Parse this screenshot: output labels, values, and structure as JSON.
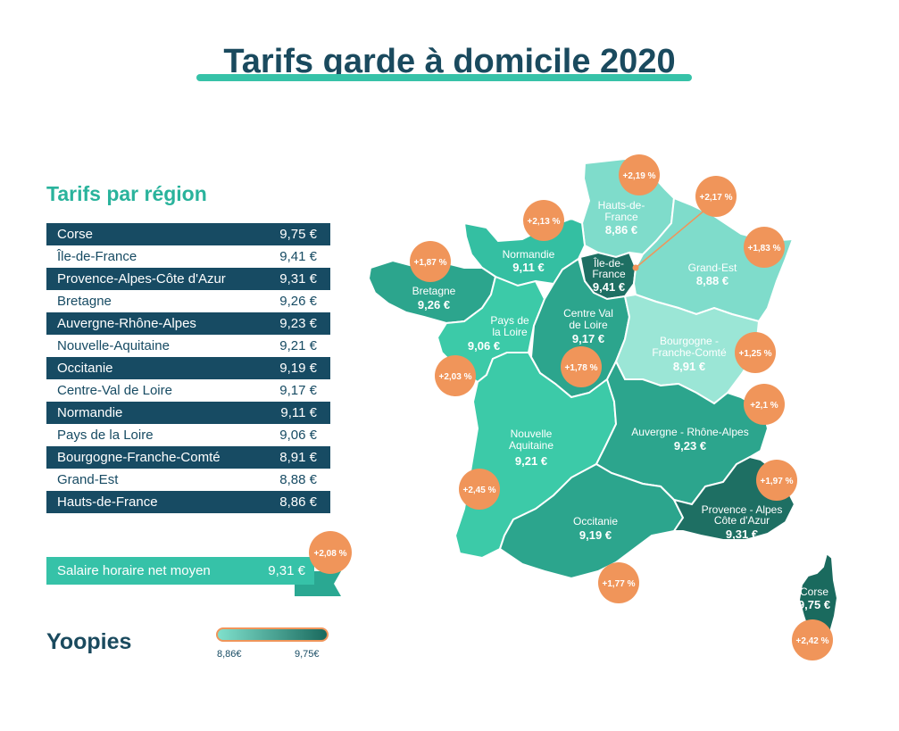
{
  "title": "Tarifs garde à domicile 2020",
  "subtitle": "Tarifs par région",
  "colors": {
    "dark_row": "#174b63",
    "accent_teal": "#36c2a8",
    "badge_orange": "#f0955a",
    "scale_min": "#7fe0cc",
    "scale_max": "#1a6a5e"
  },
  "table": [
    {
      "region": "Corse",
      "price": "9,75 €"
    },
    {
      "region": "Île-de-France",
      "price": "9,41 €"
    },
    {
      "region": "Provence-Alpes-Côte d'Azur",
      "price": "9,31 €"
    },
    {
      "region": "Bretagne",
      "price": "9,26 €"
    },
    {
      "region": "Auvergne-Rhône-Alpes",
      "price": "9,23 €"
    },
    {
      "region": "Nouvelle-Aquitaine",
      "price": "9,21 €"
    },
    {
      "region": "Occitanie",
      "price": "9,19 €"
    },
    {
      "region": "Centre-Val de Loire",
      "price": "9,17 €"
    },
    {
      "region": "Normandie",
      "price": "9,11 €"
    },
    {
      "region": "Pays de la Loire",
      "price": "9,06 €"
    },
    {
      "region": "Bourgogne-Franche-Comté",
      "price": "8,91 €"
    },
    {
      "region": "Grand-Est",
      "price": "8,88 €"
    },
    {
      "region": "Hauts-de-France",
      "price": "8,86 €"
    }
  ],
  "average": {
    "label": "Salaire horaire net moyen",
    "value": "9,31 €",
    "change": "+2,08 %"
  },
  "logo": "Yoopies",
  "legend": {
    "min": "8,86€",
    "max": "9,75€"
  },
  "map": {
    "hauts_de_france": {
      "name": [
        "Hauts-de-",
        "France"
      ],
      "value": "8,86 €",
      "change": "+2,19 %"
    },
    "normandie": {
      "name": [
        "Normandie"
      ],
      "value": "9,11 €",
      "change": "+2,13 %"
    },
    "ile_de_france": {
      "name": [
        "Île-de-",
        "France"
      ],
      "value": "9,41 €",
      "change": "+2,17 %"
    },
    "grand_est": {
      "name": [
        "Grand-Est"
      ],
      "value": "8,88 €",
      "change": "+1,83 %"
    },
    "bretagne": {
      "name": [
        "Bretagne"
      ],
      "value": "9,26 €",
      "change": "+1,87 %"
    },
    "pays_de_la_loire": {
      "name": [
        "Pays de",
        "la Loire"
      ],
      "value": "9,06 €",
      "change": "+2,03 %"
    },
    "centre_val_de_loire": {
      "name": [
        "Centre Val",
        "de Loire"
      ],
      "value": "9,17 €",
      "change": "+1,78 %"
    },
    "bourgogne_franche_comte": {
      "name": [
        "Bourgogne -",
        "Franche-Comté"
      ],
      "value": "8,91 €",
      "change": "+1,25 %"
    },
    "nouvelle_aquitaine": {
      "name": [
        "Nouvelle",
        "Aquitaine"
      ],
      "value": "9,21 €",
      "change": "+2,45 %"
    },
    "auvergne_rhone_alpes": {
      "name": [
        "Auvergne - Rhône-Alpes"
      ],
      "value": "9,23 €",
      "change": "+2,1 %"
    },
    "occitanie": {
      "name": [
        "Occitanie"
      ],
      "value": "9,19 €",
      "change": "+1,77 %"
    },
    "paca": {
      "name": [
        "Provence - Alpes",
        "Côte d'Azur"
      ],
      "value": "9,31 €",
      "change": "+1,97 %"
    },
    "corse": {
      "name": [
        "Corse"
      ],
      "value": "9,75 €",
      "change": "+2,42 %"
    }
  }
}
